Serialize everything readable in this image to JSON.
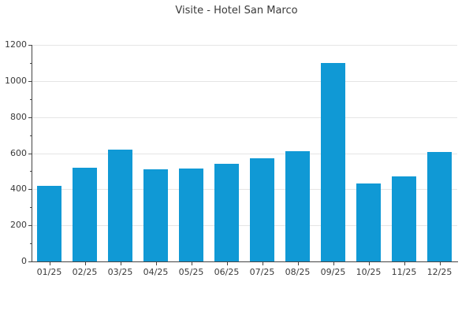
{
  "chart_data": {
    "type": "bar",
    "title": "Visite - Hotel San Marco",
    "categories": [
      "01/25",
      "02/25",
      "03/25",
      "04/25",
      "05/25",
      "06/25",
      "07/25",
      "08/25",
      "09/25",
      "10/25",
      "11/25",
      "12/25"
    ],
    "values": [
      420,
      520,
      620,
      510,
      515,
      540,
      570,
      610,
      1100,
      430,
      470,
      605
    ],
    "xlabel": "",
    "ylabel": "",
    "ylim": [
      0,
      1200
    ],
    "yticks": [
      0,
      200,
      400,
      600,
      800,
      1000,
      1200
    ],
    "minor_tick_step": 100,
    "grid": "horizontal-major-only",
    "legend_position": "none",
    "colors": {
      "bar": "#1099d5",
      "grid": "#e5e5e5",
      "spine": "#444444",
      "text": "#3a3a3a"
    }
  }
}
